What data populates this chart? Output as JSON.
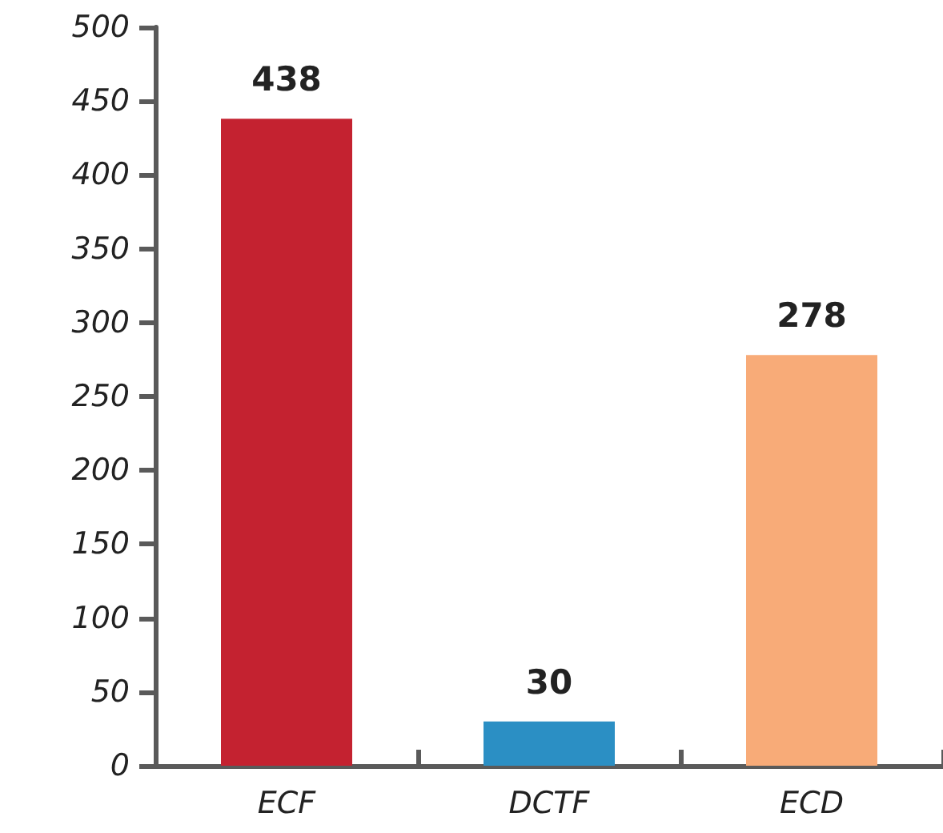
{
  "chart_data": {
    "type": "bar",
    "categories": [
      "ECF",
      "DCTF",
      "ECD"
    ],
    "values": [
      438,
      30,
      278
    ],
    "colors": [
      "#c42230",
      "#2b8fc4",
      "#f8ab78"
    ],
    "ylim": [
      0,
      500
    ],
    "yticks": [
      0,
      50,
      100,
      150,
      200,
      250,
      300,
      350,
      400,
      450,
      500
    ],
    "data_labels": true,
    "grid": false
  }
}
